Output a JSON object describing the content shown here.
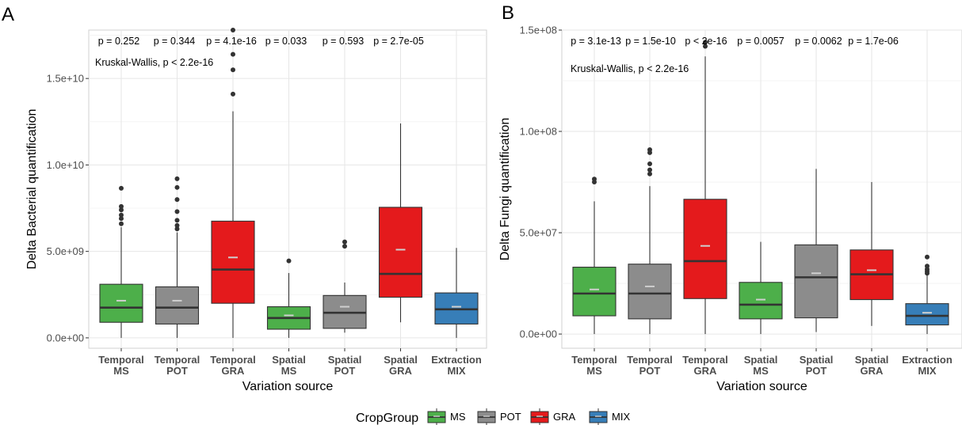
{
  "chart_data": [
    {
      "type": "box",
      "panel_label": "A",
      "xlabel": "Variation source",
      "ylabel": "Delta Bacterial quantification",
      "ylim": [
        -600000000.0,
        17800000000.0
      ],
      "yticks": [
        0,
        5000000000.0,
        10000000000.0,
        15000000000.0
      ],
      "ytick_labels": [
        "0.0e+00",
        "5.0e+09",
        "1.0e+10",
        "1.5e+10"
      ],
      "categories": [
        {
          "line1": "Temporal",
          "line2": "MS"
        },
        {
          "line1": "Temporal",
          "line2": "POT"
        },
        {
          "line1": "Temporal",
          "line2": "GRA"
        },
        {
          "line1": "Spatial",
          "line2": "MS"
        },
        {
          "line1": "Spatial",
          "line2": "POT"
        },
        {
          "line1": "Spatial",
          "line2": "GRA"
        },
        {
          "line1": "Extraction",
          "line2": "MIX"
        }
      ],
      "p_values": [
        "p = 0.252",
        "p = 0.344",
        "p = 4.1e-16",
        "p = 0.033",
        "p = 0.593",
        "p = 2.7e-05"
      ],
      "kruskal": "Kruskal-Wallis, p < 2.2e-16",
      "boxes": [
        {
          "group": "MS",
          "whisker_low": 0,
          "q1": 900000000.0,
          "median": 1750000000.0,
          "q3": 3100000000.0,
          "whisker_high": 6400000000.0,
          "mean": 2150000000.0,
          "outliers": [
            6600000000.0,
            6900000000.0,
            7100000000.0,
            7400000000.0,
            7600000000.0,
            8650000000.0
          ]
        },
        {
          "group": "POT",
          "whisker_low": 0,
          "q1": 800000000.0,
          "median": 1750000000.0,
          "q3": 2950000000.0,
          "whisker_high": 6100000000.0,
          "mean": 2150000000.0,
          "outliers": [
            6300000000.0,
            6500000000.0,
            6800000000.0,
            7300000000.0,
            8000000000.0,
            8700000000.0,
            9200000000.0
          ]
        },
        {
          "group": "GRA",
          "whisker_low": 0,
          "q1": 2000000000.0,
          "median": 3950000000.0,
          "q3": 6750000000.0,
          "whisker_high": 13100000000.0,
          "mean": 4650000000.0,
          "outliers": [
            14100000000.0,
            15500000000.0,
            16400000000.0,
            17800000000.0
          ]
        },
        {
          "group": "MS",
          "whisker_low": 0,
          "q1": 500000000.0,
          "median": 1150000000.0,
          "q3": 1800000000.0,
          "whisker_high": 3750000000.0,
          "mean": 1300000000.0,
          "outliers": [
            4450000000.0
          ]
        },
        {
          "group": "POT",
          "whisker_low": 300000000.0,
          "q1": 550000000.0,
          "median": 1450000000.0,
          "q3": 2450000000.0,
          "whisker_high": 3200000000.0,
          "mean": 1800000000.0,
          "outliers": [
            5300000000.0,
            5550000000.0
          ]
        },
        {
          "group": "GRA",
          "whisker_low": 900000000.0,
          "q1": 2350000000.0,
          "median": 3700000000.0,
          "q3": 7550000000.0,
          "whisker_high": 12400000000.0,
          "mean": 5100000000.0,
          "outliers": []
        },
        {
          "group": "MIX",
          "whisker_low": 0,
          "q1": 800000000.0,
          "median": 1650000000.0,
          "q3": 2600000000.0,
          "whisker_high": 5200000000.0,
          "mean": 1800000000.0,
          "outliers": []
        }
      ]
    },
    {
      "type": "box",
      "panel_label": "B",
      "xlabel": "Variation source",
      "ylabel": "Delta Fungi quantification",
      "ylim": [
        -7000000.0,
        150000000.0
      ],
      "yticks": [
        0,
        50000000.0,
        100000000.0,
        150000000.0
      ],
      "ytick_labels": [
        "0.0e+00",
        "5.0e+07",
        "1.0e+08",
        "1.5e+08"
      ],
      "categories": [
        {
          "line1": "Temporal",
          "line2": "MS"
        },
        {
          "line1": "Temporal",
          "line2": "POT"
        },
        {
          "line1": "Temporal",
          "line2": "GRA"
        },
        {
          "line1": "Spatial",
          "line2": "MS"
        },
        {
          "line1": "Spatial",
          "line2": "POT"
        },
        {
          "line1": "Spatial",
          "line2": "GRA"
        },
        {
          "line1": "Extraction",
          "line2": "MIX"
        }
      ],
      "p_values": [
        "p = 3.1e-13",
        "p = 1.5e-10",
        "p < 2e-16",
        "p = 0.0057",
        "p = 0.0062",
        "p = 1.7e-06"
      ],
      "kruskal": "Kruskal-Wallis, p < 2.2e-16",
      "boxes": [
        {
          "group": "MS",
          "whisker_low": 0,
          "q1": 9000000.0,
          "median": 20000000.0,
          "q3": 33000000.0,
          "whisker_high": 65500000.0,
          "mean": 22000000.0,
          "outliers": [
            75000000.0,
            76500000.0
          ]
        },
        {
          "group": "POT",
          "whisker_low": 0,
          "q1": 7500000.0,
          "median": 20000000.0,
          "q3": 34500000.0,
          "whisker_high": 73000000.0,
          "mean": 23500000.0,
          "outliers": [
            79000000.0,
            81000000.0,
            84000000.0,
            89500000.0,
            91000000.0
          ]
        },
        {
          "group": "GRA",
          "whisker_low": 0,
          "q1": 17500000.0,
          "median": 36000000.0,
          "q3": 66500000.0,
          "whisker_high": 137000000.0,
          "mean": 43500000.0,
          "outliers": [
            142000000.0,
            144000000.0
          ]
        },
        {
          "group": "MS",
          "whisker_low": 0,
          "q1": 7500000.0,
          "median": 14500000.0,
          "q3": 25500000.0,
          "whisker_high": 45500000.0,
          "mean": 17000000.0,
          "outliers": []
        },
        {
          "group": "POT",
          "whisker_low": 1000000.0,
          "q1": 8000000.0,
          "median": 28000000.0,
          "q3": 44000000.0,
          "whisker_high": 81500000.0,
          "mean": 30000000.0,
          "outliers": []
        },
        {
          "group": "GRA",
          "whisker_low": 4000000.0,
          "q1": 17000000.0,
          "median": 29500000.0,
          "q3": 41500000.0,
          "whisker_high": 75000000.0,
          "mean": 31500000.0,
          "outliers": []
        },
        {
          "group": "MIX",
          "whisker_low": 0,
          "q1": 4500000.0,
          "median": 9000000.0,
          "q3": 15000000.0,
          "whisker_high": 29000000.0,
          "mean": 10500000.0,
          "outliers": [
            30000000.0,
            31000000.0,
            32000000.0,
            33500000.0,
            38000000.0
          ]
        }
      ]
    }
  ],
  "legend": {
    "title": "CropGroup",
    "items": [
      {
        "key": "MS",
        "label": "MS",
        "color": "#4daf4a"
      },
      {
        "key": "POT",
        "label": "POT",
        "color": "#8c8c8c"
      },
      {
        "key": "GRA",
        "label": "GRA",
        "color": "#e41a1c"
      },
      {
        "key": "MIX",
        "label": "MIX",
        "color": "#377eb8"
      }
    ]
  }
}
